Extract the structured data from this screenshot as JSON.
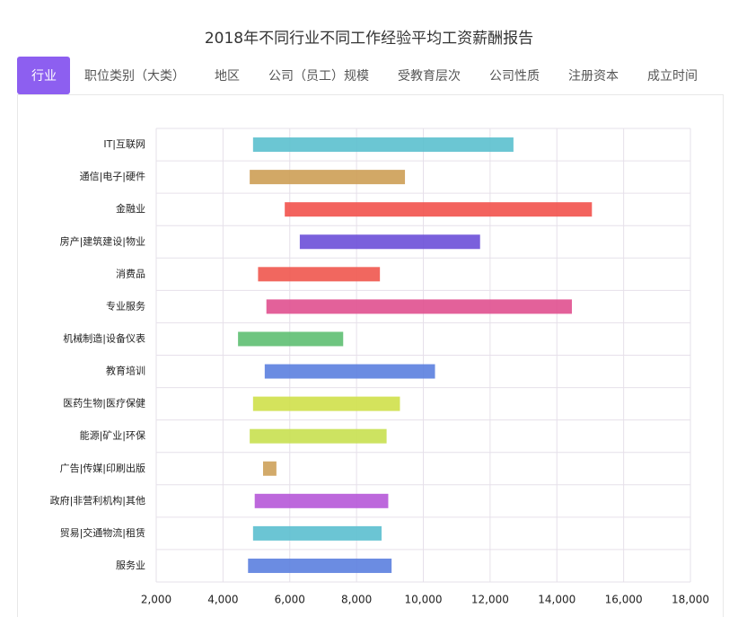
{
  "tabs": [
    "行业",
    "职位类别（大类）",
    "地区",
    "公司（员工）规模",
    "受教育层次",
    "公司性质",
    "注册资本",
    "成立时间"
  ],
  "active_tab": 0,
  "chart_data": {
    "type": "range-bar",
    "title": "2018年不同行业不同工作经验平均工资薪酬报告",
    "categories": [
      "IT|互联网",
      "通信|电子|硬件",
      "金融业",
      "房产|建筑建设|物业",
      "消费品",
      "专业服务",
      "机械制造|设备仪表",
      "教育培训",
      "医药生物|医疗保健",
      "能源|矿业|环保",
      "广告|传媒|印刷出版",
      "政府|非营利机构|其他",
      "贸易|交通物流|租赁",
      "服务业"
    ],
    "values": [
      [
        4900,
        12700
      ],
      [
        4800,
        9450
      ],
      [
        5850,
        15050
      ],
      [
        6300,
        11700
      ],
      [
        5050,
        8700
      ],
      [
        5300,
        14450
      ],
      [
        4450,
        7600
      ],
      [
        5250,
        10350
      ],
      [
        4900,
        9300
      ],
      [
        4800,
        8900
      ],
      [
        5200,
        5600
      ],
      [
        4950,
        8950
      ],
      [
        4900,
        8750
      ],
      [
        4750,
        9050
      ]
    ],
    "colors": [
      "#5bc0ce",
      "#cd9f55",
      "#f2524d",
      "#6b4fd8",
      "#f0564e",
      "#e0508f",
      "#5ebf72",
      "#5b7fdf",
      "#cfe04a",
      "#c8e050",
      "#cda15a",
      "#b658d8",
      "#5bbfcf",
      "#5b7fdf"
    ],
    "xlim": [
      2000,
      18000
    ],
    "xticks": [
      {
        "value": 2000,
        "label": "2,000"
      },
      {
        "value": 4000,
        "label": "4,000"
      },
      {
        "value": 6000,
        "label": "6,000"
      },
      {
        "value": 8000,
        "label": "8,000"
      },
      {
        "value": 10000,
        "label": "10,000"
      },
      {
        "value": 12000,
        "label": "12,000"
      },
      {
        "value": 14000,
        "label": "14,000"
      },
      {
        "value": 16000,
        "label": "16,000"
      },
      {
        "value": 18000,
        "label": "18,000"
      }
    ],
    "grid": true
  }
}
